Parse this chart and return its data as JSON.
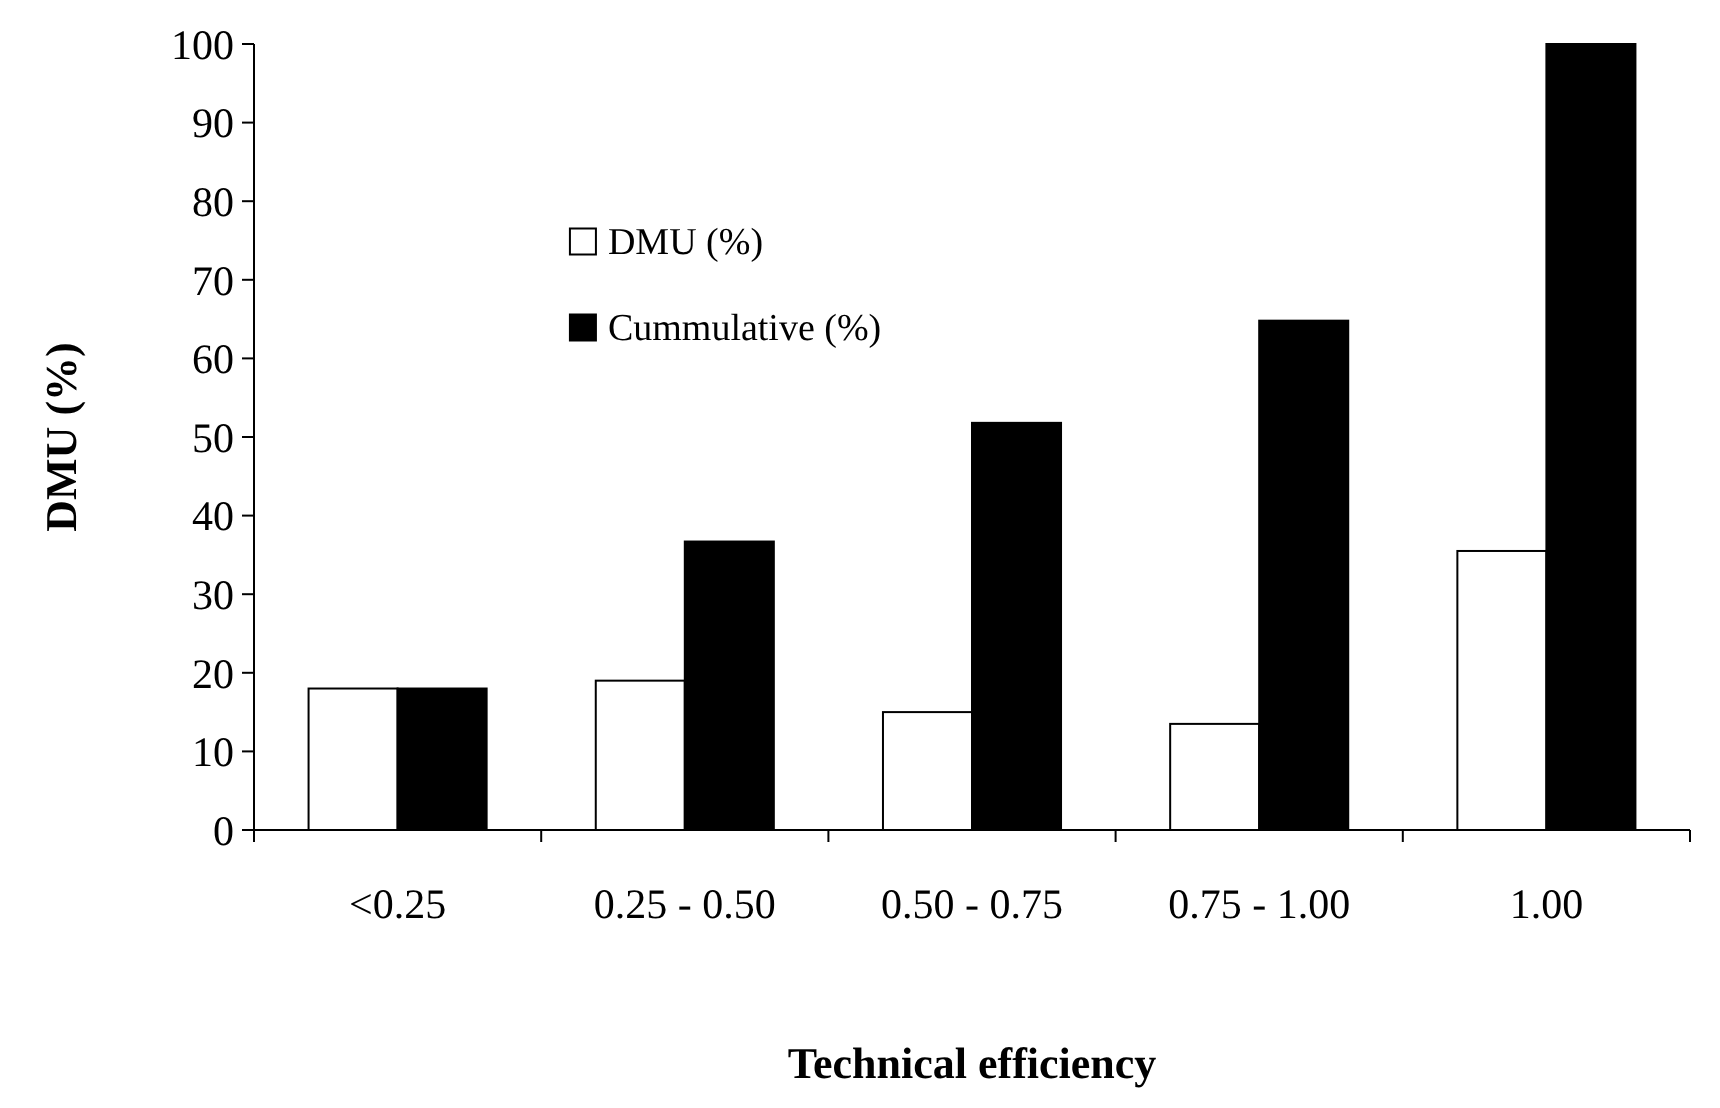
{
  "chart_data": {
    "type": "bar",
    "xlabel": "Technical efficiency",
    "ylabel": "DMU (%)",
    "categories": [
      "<0.25",
      "0.25 - 0.50",
      "0.50 - 0.75",
      "0.75 - 1.00",
      "1.00"
    ],
    "series": [
      {
        "name": "DMU (%)",
        "color": "#ffffff",
        "values": [
          18,
          19,
          15,
          13.5,
          35.5
        ]
      },
      {
        "name": "Cummulative (%)",
        "color": "#000000",
        "values": [
          18,
          36.7,
          51.8,
          64.8,
          100
        ]
      }
    ],
    "ylim": [
      0,
      100
    ],
    "yticks": [
      0,
      10,
      20,
      30,
      40,
      50,
      60,
      70,
      80,
      90,
      100
    ],
    "grid": false,
    "legend": "top left"
  }
}
